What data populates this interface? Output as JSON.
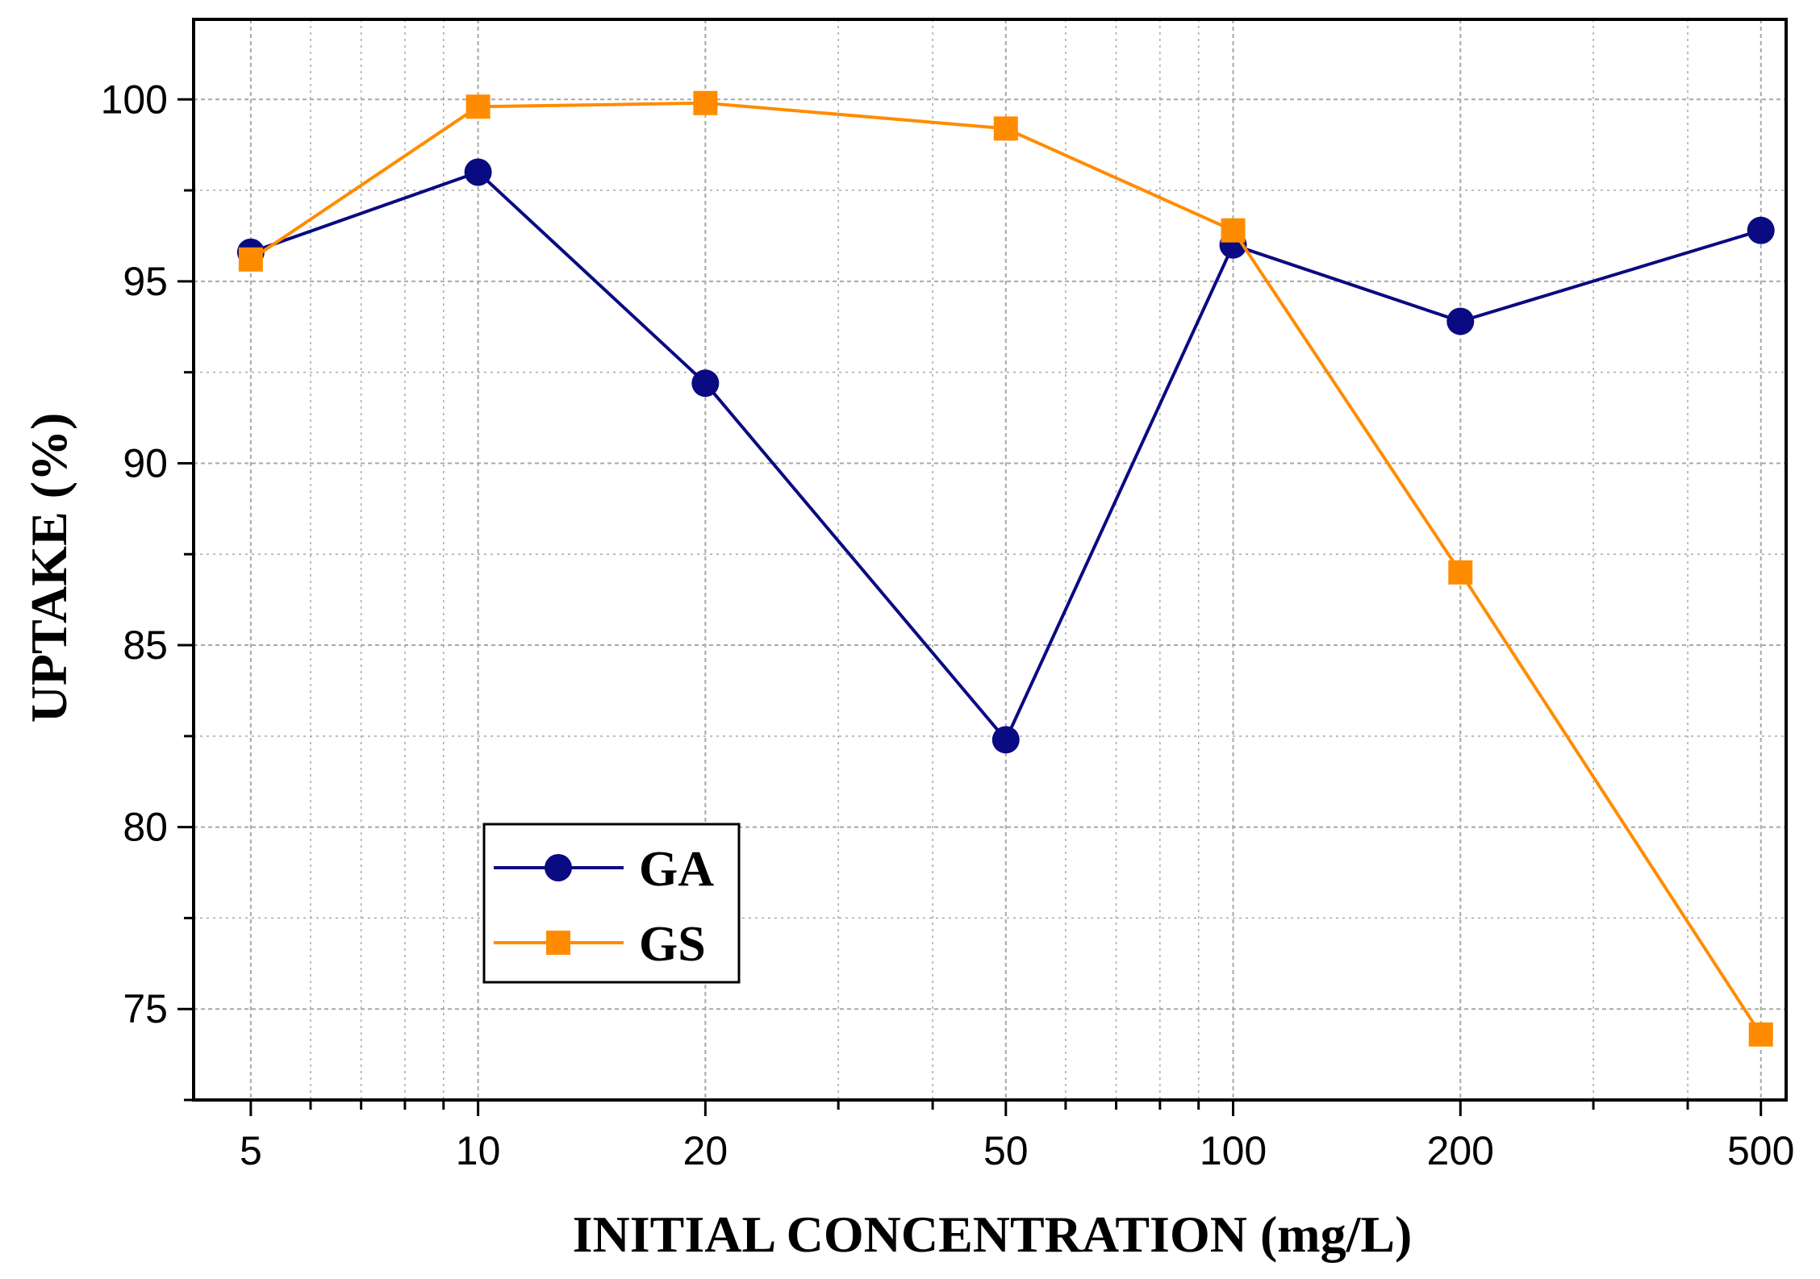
{
  "chart_data": {
    "type": "line",
    "title": "",
    "xlabel": "INITIAL CONCENTRATION (mg/L)",
    "ylabel": "UPTAKE (%)",
    "xscale": "log",
    "xlim": [
      4.2,
      540
    ],
    "ylim": [
      72.5,
      102.2
    ],
    "xticks": [
      5,
      10,
      20,
      50,
      100,
      200,
      500
    ],
    "xtick_labels": [
      "5",
      "10",
      "20",
      "50",
      "100",
      "200",
      "500"
    ],
    "yticks": [
      75,
      80,
      85,
      90,
      95,
      100
    ],
    "ytick_labels": [
      "75",
      "80",
      "85",
      "90",
      "95",
      "100"
    ],
    "grid": true,
    "legend_position": "lower-left",
    "x": [
      5,
      10,
      20,
      50,
      100,
      200,
      500
    ],
    "series": [
      {
        "name": "GA",
        "marker": "circle",
        "color": "#0a0a82",
        "values": [
          95.8,
          98.0,
          92.2,
          82.4,
          96.0,
          93.9,
          96.4
        ]
      },
      {
        "name": "GS",
        "marker": "square",
        "color": "#ff8c00",
        "values": [
          95.6,
          99.8,
          99.9,
          99.2,
          96.4,
          87.0,
          74.3
        ]
      }
    ]
  }
}
